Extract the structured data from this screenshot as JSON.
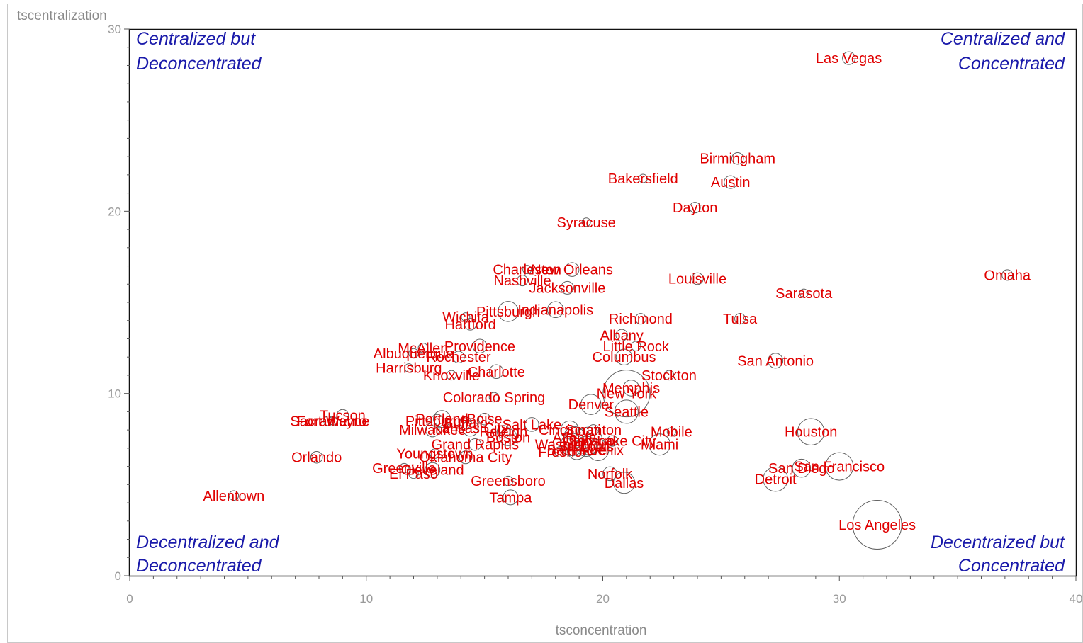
{
  "chart_data": {
    "type": "scatter",
    "title": "",
    "xlabel": "tsconcentration",
    "ylabel": "tscentralization",
    "xlim": [
      0,
      40
    ],
    "ylim": [
      0,
      30
    ],
    "x_ticks": [
      "0",
      "10",
      "20",
      "30",
      "40"
    ],
    "y_ticks": [
      "0",
      "10",
      "20",
      "30"
    ],
    "grid": false,
    "legend": "none",
    "colors": {
      "labels": "#e00000",
      "quadrants": "#1a1aaa",
      "bubbles": "#606060",
      "axis_text": "#9a9a9a"
    },
    "quadrant_labels": {
      "top_left": [
        "Centralized but",
        "Deconcentrated"
      ],
      "top_right": [
        "Centralized and",
        "Concentrated"
      ],
      "bottom_left": [
        "Decentralized and",
        "Deconcentrated"
      ],
      "bottom_right": [
        "Decentraized but",
        "Concentrated"
      ]
    },
    "points": [
      {
        "label": "Las Vegas",
        "x": 30.4,
        "y": 28.4,
        "size": 0.6
      },
      {
        "label": "Birmingham",
        "x": 25.7,
        "y": 22.9,
        "size": 0.55
      },
      {
        "label": "Bakersfield",
        "x": 21.7,
        "y": 21.8,
        "size": 0.4
      },
      {
        "label": "Austin",
        "x": 25.4,
        "y": 21.6,
        "size": 0.6
      },
      {
        "label": "Dayton",
        "x": 23.9,
        "y": 20.2,
        "size": 0.5
      },
      {
        "label": "Syracuse",
        "x": 19.3,
        "y": 19.4,
        "size": 0.4
      },
      {
        "label": "Omaha",
        "x": 37.1,
        "y": 16.5,
        "size": 0.5
      },
      {
        "label": "Louisville",
        "x": 24.0,
        "y": 16.3,
        "size": 0.55
      },
      {
        "label": "Sarasota",
        "x": 28.5,
        "y": 15.5,
        "size": 0.4
      },
      {
        "label": "New Orleans",
        "x": 18.7,
        "y": 16.8,
        "size": 0.65
      },
      {
        "label": "Charleston",
        "x": 16.8,
        "y": 16.8,
        "size": 0.4
      },
      {
        "label": "Nashville",
        "x": 16.6,
        "y": 16.2,
        "size": 0.5
      },
      {
        "label": "Jacksonville",
        "x": 18.5,
        "y": 15.8,
        "size": 0.6
      },
      {
        "label": "Indianapolis",
        "x": 18.0,
        "y": 14.6,
        "size": 0.75
      },
      {
        "label": "Pittsburgh",
        "x": 16.0,
        "y": 14.5,
        "size": 0.95
      },
      {
        "label": "Richmond",
        "x": 21.6,
        "y": 14.1,
        "size": 0.5
      },
      {
        "label": "Tulsa",
        "x": 25.8,
        "y": 14.1,
        "size": 0.5
      },
      {
        "label": "Wichita",
        "x": 14.2,
        "y": 14.2,
        "size": 0.4
      },
      {
        "label": "Hartford",
        "x": 14.4,
        "y": 13.8,
        "size": 0.55
      },
      {
        "label": "Albany",
        "x": 20.8,
        "y": 13.2,
        "size": 0.55
      },
      {
        "label": "Little Rock",
        "x": 21.4,
        "y": 12.6,
        "size": 0.45
      },
      {
        "label": "Columbus",
        "x": 20.9,
        "y": 12.0,
        "size": 0.75
      },
      {
        "label": "San Antonio",
        "x": 27.3,
        "y": 11.8,
        "size": 0.7
      },
      {
        "label": "McAllen",
        "x": 12.4,
        "y": 12.5,
        "size": 0.45
      },
      {
        "label": "Providence",
        "x": 14.8,
        "y": 12.6,
        "size": 0.65
      },
      {
        "label": "Albuquerque",
        "x": 12.0,
        "y": 12.2,
        "size": 0.45
      },
      {
        "label": "Rochester",
        "x": 13.9,
        "y": 12.0,
        "size": 0.55
      },
      {
        "label": "Harrisburg",
        "x": 11.8,
        "y": 11.4,
        "size": 0.4
      },
      {
        "label": "Knoxville",
        "x": 13.6,
        "y": 11.0,
        "size": 0.45
      },
      {
        "label": "Charlotte",
        "x": 15.5,
        "y": 11.2,
        "size": 0.65
      },
      {
        "label": "Stockton",
        "x": 22.8,
        "y": 11.0,
        "size": 0.45
      },
      {
        "label": "Memphis",
        "x": 21.2,
        "y": 10.3,
        "size": 0.75
      },
      {
        "label": "New York",
        "x": 21.0,
        "y": 10.0,
        "size": 2.2
      },
      {
        "label": "Colorado Spring",
        "x": 15.4,
        "y": 9.8,
        "size": 0.45
      },
      {
        "label": "Denver",
        "x": 19.5,
        "y": 9.4,
        "size": 0.95
      },
      {
        "label": "Seattle",
        "x": 21.0,
        "y": 9.0,
        "size": 1.1
      },
      {
        "label": "Tucson",
        "x": 9.0,
        "y": 8.8,
        "size": 0.55
      },
      {
        "label": "Fort Wayne",
        "x": 8.6,
        "y": 8.5,
        "size": 0.4
      },
      {
        "label": "Sacramento",
        "x": 8.4,
        "y": 8.5,
        "size": 0.45
      },
      {
        "label": "Houston",
        "x": 28.8,
        "y": 7.9,
        "size": 1.25
      },
      {
        "label": "Pittsburgh",
        "x": 13.0,
        "y": 8.5,
        "size": 0.6
      },
      {
        "label": "Portland",
        "x": 13.2,
        "y": 8.6,
        "size": 0.8
      },
      {
        "label": "Buffalo",
        "x": 14.2,
        "y": 8.4,
        "size": 0.55
      },
      {
        "label": "Boise",
        "x": 15.0,
        "y": 8.6,
        "size": 0.55
      },
      {
        "label": "Milwaukee",
        "x": 12.8,
        "y": 8.0,
        "size": 0.65
      },
      {
        "label": "Kansas City",
        "x": 14.4,
        "y": 8.1,
        "size": 0.75
      },
      {
        "label": "Raleigh",
        "x": 15.8,
        "y": 7.9,
        "size": 0.6
      },
      {
        "label": "Salt Lake",
        "x": 17.0,
        "y": 8.3,
        "size": 0.65
      },
      {
        "label": "Boston",
        "x": 16.0,
        "y": 7.6,
        "size": 0.8
      },
      {
        "label": "Cincinnati",
        "x": 18.6,
        "y": 8.0,
        "size": 0.85
      },
      {
        "label": "Scranton",
        "x": 19.6,
        "y": 8.0,
        "size": 0.5
      },
      {
        "label": "Atlanta",
        "x": 18.8,
        "y": 7.6,
        "size": 1.0
      },
      {
        "label": "Chicago",
        "x": 19.4,
        "y": 7.4,
        "size": 1.3
      },
      {
        "label": "Salt Lake City",
        "x": 20.4,
        "y": 7.4,
        "size": 0.5
      },
      {
        "label": "Mobile",
        "x": 22.9,
        "y": 7.9,
        "size": 0.4
      },
      {
        "label": "Miami",
        "x": 22.4,
        "y": 7.2,
        "size": 1.0
      },
      {
        "label": "Washington",
        "x": 18.7,
        "y": 7.2,
        "size": 1.05
      },
      {
        "label": "St. Louis",
        "x": 19.3,
        "y": 7.1,
        "size": 0.95
      },
      {
        "label": "Phoenix",
        "x": 19.8,
        "y": 6.9,
        "size": 1.0
      },
      {
        "label": "Baltimore",
        "x": 18.9,
        "y": 6.9,
        "size": 0.9
      },
      {
        "label": "Fresno",
        "x": 18.2,
        "y": 6.8,
        "size": 0.5
      },
      {
        "label": "Grand Rapids",
        "x": 14.6,
        "y": 7.2,
        "size": 0.55
      },
      {
        "label": "Youngstown",
        "x": 12.9,
        "y": 6.7,
        "size": 0.45
      },
      {
        "label": "Oklahoma City",
        "x": 14.2,
        "y": 6.5,
        "size": 0.6
      },
      {
        "label": "Orlando",
        "x": 7.9,
        "y": 6.5,
        "size": 0.55
      },
      {
        "label": "Greenville",
        "x": 11.6,
        "y": 5.9,
        "size": 0.45
      },
      {
        "label": "Cleveland",
        "x": 12.8,
        "y": 5.8,
        "size": 0.7
      },
      {
        "label": "El Paso",
        "x": 12.0,
        "y": 5.6,
        "size": 0.45
      },
      {
        "label": "Greensboro",
        "x": 16.0,
        "y": 5.2,
        "size": 0.45
      },
      {
        "label": "Norfolk",
        "x": 20.3,
        "y": 5.6,
        "size": 0.65
      },
      {
        "label": "Dallas",
        "x": 20.9,
        "y": 5.1,
        "size": 1.0
      },
      {
        "label": "San Diego",
        "x": 28.4,
        "y": 5.9,
        "size": 0.85
      },
      {
        "label": "San Francisco",
        "x": 30.0,
        "y": 6.0,
        "size": 1.3
      },
      {
        "label": "Detroit",
        "x": 27.3,
        "y": 5.3,
        "size": 1.15
      },
      {
        "label": "Tampa",
        "x": 16.1,
        "y": 4.3,
        "size": 0.7
      },
      {
        "label": "Allentown",
        "x": 4.4,
        "y": 4.4,
        "size": 0.45
      },
      {
        "label": "Los Angeles",
        "x": 31.6,
        "y": 2.8,
        "size": 2.3
      }
    ]
  }
}
